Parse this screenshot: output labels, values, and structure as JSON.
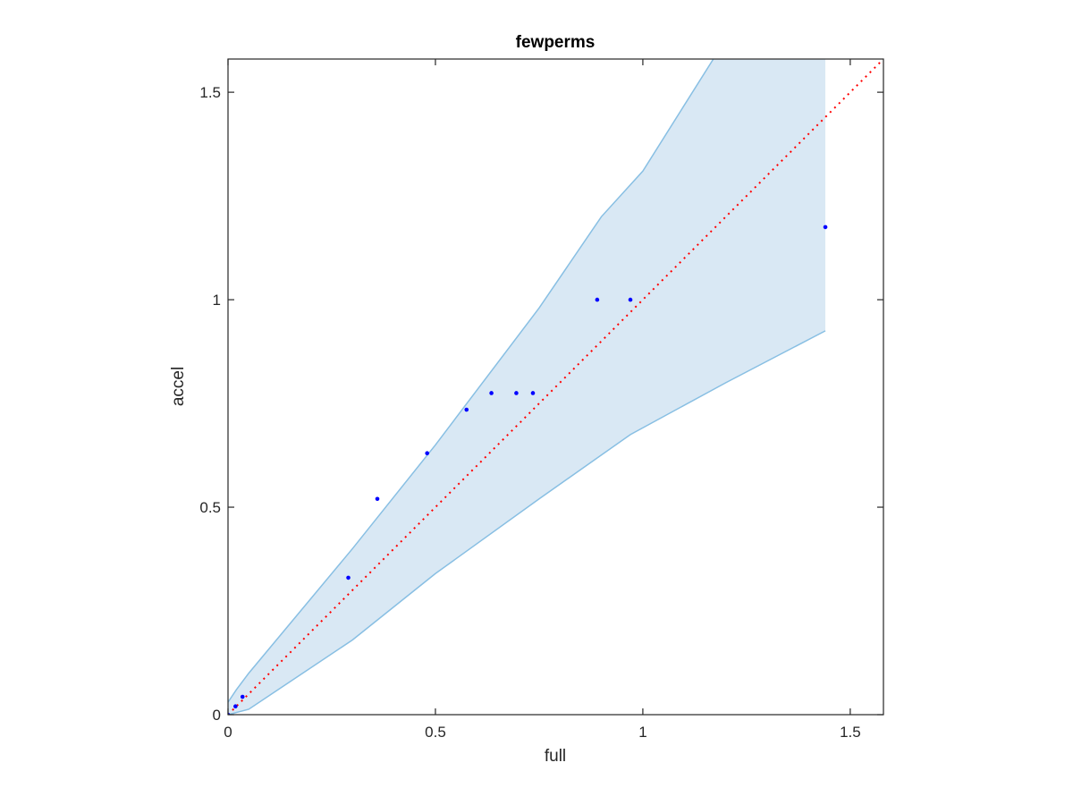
{
  "chart_data": {
    "type": "scatter",
    "title": "fewperms",
    "xlabel": "full",
    "ylabel": "accel",
    "xlim": [
      0,
      1.58
    ],
    "ylim": [
      0,
      1.58
    ],
    "xticks": [
      0,
      0.5,
      1,
      1.5
    ],
    "yticks": [
      0,
      0.5,
      1,
      1.5
    ],
    "xtick_labels": [
      "0",
      "0.5",
      "1",
      "1.5"
    ],
    "ytick_labels": [
      "0",
      "0.5",
      "1",
      "1.5"
    ],
    "grid": false,
    "series": [
      {
        "kind": "points",
        "color": "#0000ff",
        "points": [
          {
            "x": 0.0,
            "y": 0.0
          },
          {
            "x": 0.018,
            "y": 0.02
          },
          {
            "x": 0.035,
            "y": 0.043
          },
          {
            "x": 0.29,
            "y": 0.33
          },
          {
            "x": 0.36,
            "y": 0.52
          },
          {
            "x": 0.48,
            "y": 0.63
          },
          {
            "x": 0.575,
            "y": 0.735
          },
          {
            "x": 0.635,
            "y": 0.775
          },
          {
            "x": 0.695,
            "y": 0.775
          },
          {
            "x": 0.735,
            "y": 0.775
          },
          {
            "x": 0.89,
            "y": 1.0
          },
          {
            "x": 0.97,
            "y": 1.0
          },
          {
            "x": 1.44,
            "y": 1.175
          }
        ]
      },
      {
        "kind": "reference-line",
        "style": "dotted",
        "color": "#ff0000",
        "x": [
          0,
          1.58
        ],
        "y": [
          0,
          1.58
        ]
      },
      {
        "kind": "band",
        "fill": "#d9e8f4",
        "edge": "#88bfe3",
        "upper": [
          {
            "x": 0.0,
            "y": 0.03
          },
          {
            "x": 0.02,
            "y": 0.06
          },
          {
            "x": 0.05,
            "y": 0.1
          },
          {
            "x": 0.3,
            "y": 0.4
          },
          {
            "x": 0.5,
            "y": 0.65
          },
          {
            "x": 0.75,
            "y": 0.98
          },
          {
            "x": 0.9,
            "y": 1.2
          },
          {
            "x": 1.0,
            "y": 1.31
          },
          {
            "x": 1.17,
            "y": 1.58
          }
        ],
        "lower": [
          {
            "x": 0.0,
            "y": 0.0
          },
          {
            "x": 0.05,
            "y": 0.013
          },
          {
            "x": 0.3,
            "y": 0.18
          },
          {
            "x": 0.5,
            "y": 0.34
          },
          {
            "x": 0.75,
            "y": 0.52
          },
          {
            "x": 0.97,
            "y": 0.675
          },
          {
            "x": 1.2,
            "y": 0.8
          },
          {
            "x": 1.44,
            "y": 0.925
          }
        ],
        "right_edge_x": 1.44,
        "right_edge_top": 1.58
      }
    ]
  }
}
